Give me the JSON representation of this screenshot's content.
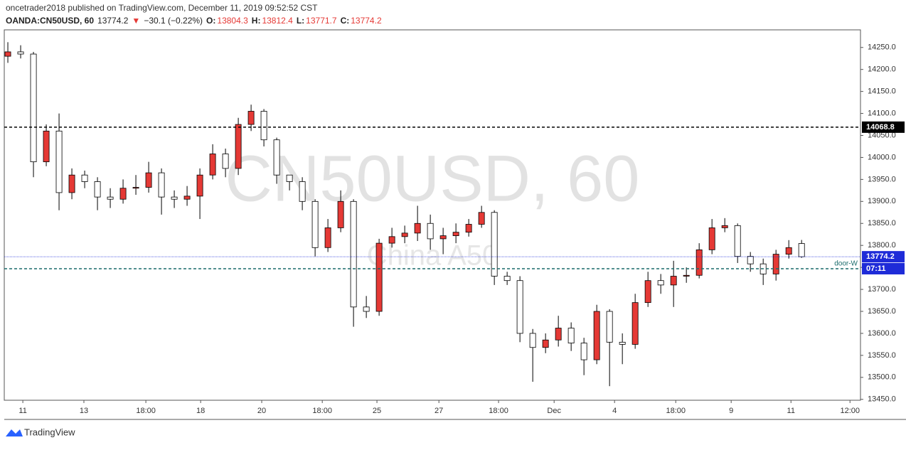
{
  "header": {
    "publisher": "oncetrader2018 published on TradingView.com, December 11, 2019 09:52:52 CST",
    "symbol": "OANDA:CN50USD, 60",
    "arrow": "▼",
    "change": "−30.1 (−0.22%)",
    "o_label": "O:",
    "h_label": "H:",
    "l_label": "L:",
    "c_label": "C:"
  },
  "footer": {
    "brand": "TradingView"
  },
  "chart_data": {
    "type": "candlestick",
    "watermark": "CN50USD, 60",
    "watermark_sub": "China A50",
    "up_color": "#e53935",
    "down_color": "#ffffff",
    "wick_color": "#000000",
    "x": [
      0,
      1,
      2,
      3,
      4,
      5,
      6,
      7,
      8,
      9,
      10,
      11,
      12,
      13,
      14,
      15,
      16,
      17,
      18,
      19,
      20,
      21,
      22,
      23,
      24,
      25,
      26,
      27,
      28,
      29,
      30,
      31,
      32,
      33,
      34,
      35,
      36,
      37,
      38,
      39,
      40,
      41,
      42,
      43,
      44,
      45,
      46,
      47,
      48,
      49,
      50,
      51,
      52,
      53,
      54,
      55,
      56,
      57,
      58,
      59,
      60,
      61,
      62
    ],
    "open": [
      14230,
      14240,
      14235,
      13990,
      14060,
      13920,
      13960,
      13945,
      13910,
      13905,
      13930,
      13932,
      13965,
      13910,
      13905,
      13912,
      13960,
      14008,
      13975,
      14075,
      14105,
      14040,
      13960,
      13945,
      13900,
      13795,
      13840,
      13900,
      13660,
      13650,
      13805,
      13820,
      13828,
      13850,
      13815,
      13822,
      13830,
      13848,
      13875,
      13730,
      13720,
      13600,
      13568,
      13585,
      13612,
      13578,
      13540,
      13650,
      13580,
      13575,
      13670,
      13720,
      13710,
      13730,
      13732,
      13790,
      13840,
      13845,
      13775,
      13758,
      13735,
      13780,
      13804.3
    ],
    "high": [
      14262,
      14255,
      14240,
      14075,
      14100,
      13975,
      13970,
      13955,
      13930,
      13950,
      13960,
      13990,
      13975,
      13925,
      13935,
      13975,
      14030,
      14020,
      14090,
      14120,
      14110,
      14045,
      13960,
      13955,
      13905,
      13860,
      13925,
      13905,
      13685,
      13815,
      13840,
      13845,
      13890,
      13870,
      13840,
      13850,
      13860,
      13890,
      13880,
      13740,
      13730,
      13610,
      13600,
      13640,
      13625,
      13590,
      13665,
      13655,
      13600,
      13690,
      13740,
      13735,
      13765,
      13750,
      13805,
      13860,
      13862,
      13850,
      13785,
      13770,
      13790,
      13812,
      13812.4
    ],
    "low": [
      14215,
      14225,
      13955,
      13980,
      13880,
      13905,
      13930,
      13880,
      13885,
      13895,
      13915,
      13920,
      13870,
      13885,
      13890,
      13860,
      13950,
      13955,
      13960,
      14060,
      14025,
      13940,
      13925,
      13880,
      13775,
      13785,
      13830,
      13615,
      13635,
      13640,
      13795,
      13805,
      13810,
      13790,
      13780,
      13805,
      13820,
      13840,
      13710,
      13710,
      13580,
      13490,
      13555,
      13570,
      13560,
      13505,
      13530,
      13480,
      13530,
      13565,
      13660,
      13690,
      13660,
      13715,
      13725,
      13780,
      13830,
      13760,
      13740,
      13710,
      13720,
      13770,
      13771.7
    ],
    "close": [
      14240,
      14235,
      13990,
      14060,
      13920,
      13960,
      13945,
      13910,
      13905,
      13930,
      13932,
      13965,
      13910,
      13905,
      13912,
      13960,
      14008,
      13975,
      14075,
      14105,
      14040,
      13960,
      13945,
      13900,
      13795,
      13840,
      13900,
      13660,
      13650,
      13805,
      13820,
      13828,
      13850,
      13815,
      13822,
      13830,
      13848,
      13875,
      13730,
      13720,
      13600,
      13568,
      13585,
      13612,
      13578,
      13540,
      13650,
      13580,
      13575,
      13670,
      13720,
      13710,
      13730,
      13732,
      13790,
      13840,
      13845,
      13775,
      13758,
      13735,
      13780,
      13795,
      13774.2
    ],
    "hlines": [
      {
        "value": 14068.8,
        "label": "14068.8",
        "color": "#000000"
      },
      {
        "value": 13774.2,
        "label": "13774.2",
        "color": "#1e2bd8"
      },
      {
        "value": 13747,
        "name": "door-W",
        "label": "07:11",
        "color": "#1a6b6b"
      }
    ],
    "xlim": [
      -0.28,
      66.6
    ],
    "ylim": [
      13448,
      14290
    ],
    "xticks": [
      {
        "value": 1.17,
        "label": "11"
      },
      {
        "value": 5.94,
        "label": "13"
      },
      {
        "value": 10.78,
        "label": "18:00"
      },
      {
        "value": 15.06,
        "label": "18"
      },
      {
        "value": 19.83,
        "label": "20"
      },
      {
        "value": 24.56,
        "label": "18:00"
      },
      {
        "value": 28.83,
        "label": "25"
      },
      {
        "value": 33.67,
        "label": "27"
      },
      {
        "value": 38.33,
        "label": "18:00"
      },
      {
        "value": 42.67,
        "label": "Dec"
      },
      {
        "value": 47.39,
        "label": "4"
      },
      {
        "value": 52.17,
        "label": "18:00"
      },
      {
        "value": 56.5,
        "label": "9"
      },
      {
        "value": 61.17,
        "label": "11"
      },
      {
        "value": 65.78,
        "label": "12:00"
      }
    ],
    "yticks": [
      {
        "value": 13450,
        "label": "13450.0"
      },
      {
        "value": 13500,
        "label": "13500.0"
      },
      {
        "value": 13550,
        "label": "13550.0"
      },
      {
        "value": 13600,
        "label": "13600.0"
      },
      {
        "value": 13650,
        "label": "13650.0"
      },
      {
        "value": 13700,
        "label": "13700.0"
      },
      {
        "value": 13750,
        "label": "13750.0"
      },
      {
        "value": 13800,
        "label": "13800.0"
      },
      {
        "value": 13850,
        "label": "13850.0"
      },
      {
        "value": 13900,
        "label": "13900.0"
      },
      {
        "value": 13950,
        "label": "13950.0"
      },
      {
        "value": 14000,
        "label": "14000.0"
      },
      {
        "value": 14050,
        "label": "14050.0"
      },
      {
        "value": 14100,
        "label": "14100.0"
      },
      {
        "value": 14150,
        "label": "14150.0"
      },
      {
        "value": 14200,
        "label": "14200.0"
      },
      {
        "value": 14250,
        "label": "14250.0"
      }
    ]
  }
}
